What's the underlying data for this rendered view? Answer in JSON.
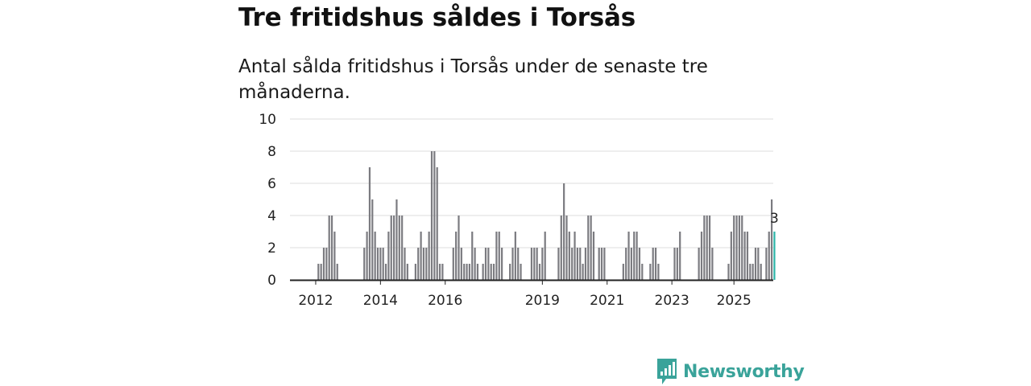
{
  "title": "Tre fritidshus såldes i Torsås",
  "subtitle": "Antal sålda fritidshus i Torsås under de senaste tre månaderna.",
  "brand": {
    "name": "Newsworthy",
    "color": "#3aa39a"
  },
  "chart_data": {
    "type": "bar",
    "y_ticks": [
      0,
      2,
      4,
      6,
      8,
      10
    ],
    "ylim": [
      0,
      10
    ],
    "x_tick_labels": [
      "2012",
      "2014",
      "2016",
      "2019",
      "2021",
      "2023",
      "2025"
    ],
    "grid": true,
    "bar_color": "#7b7b80",
    "highlight_color": "#2bb5a8",
    "highlight_value_label": "3",
    "series": [
      {
        "values": [
          0,
          0,
          1,
          1,
          2,
          2,
          4,
          4,
          3,
          1,
          0,
          0,
          0,
          0,
          0,
          0,
          0,
          0,
          0,
          2,
          3,
          7,
          5,
          3,
          2,
          2,
          2,
          1,
          3,
          4,
          4,
          5,
          4,
          4,
          2,
          1,
          0,
          0,
          1,
          2,
          3,
          2,
          2,
          3,
          8,
          8,
          7,
          1,
          1,
          0,
          0,
          0,
          2,
          3,
          4,
          2,
          1,
          1,
          1,
          3,
          2,
          1,
          0,
          1,
          2,
          2,
          1,
          1,
          3,
          3,
          2,
          0,
          0,
          1,
          2,
          3,
          2,
          1,
          0,
          0,
          0,
          2,
          2,
          2,
          1,
          2,
          3,
          0,
          0,
          0,
          0,
          2,
          4,
          6,
          4,
          3,
          2,
          3,
          2,
          2,
          1,
          2,
          4,
          4,
          3,
          0,
          2,
          2,
          2,
          0,
          0,
          0,
          0,
          0,
          0,
          1,
          2,
          3,
          2,
          3,
          3,
          2,
          1,
          0,
          0,
          1,
          2,
          2,
          1,
          0,
          0,
          0,
          0,
          0,
          2,
          2,
          3,
          0,
          0,
          0,
          0,
          0,
          0,
          2,
          3,
          4,
          4,
          4,
          2,
          0,
          0,
          0,
          0,
          0,
          1,
          3,
          4,
          4,
          4,
          4,
          3,
          3,
          1,
          1,
          2,
          2,
          1,
          0,
          2,
          3,
          5,
          3
        ]
      }
    ]
  }
}
